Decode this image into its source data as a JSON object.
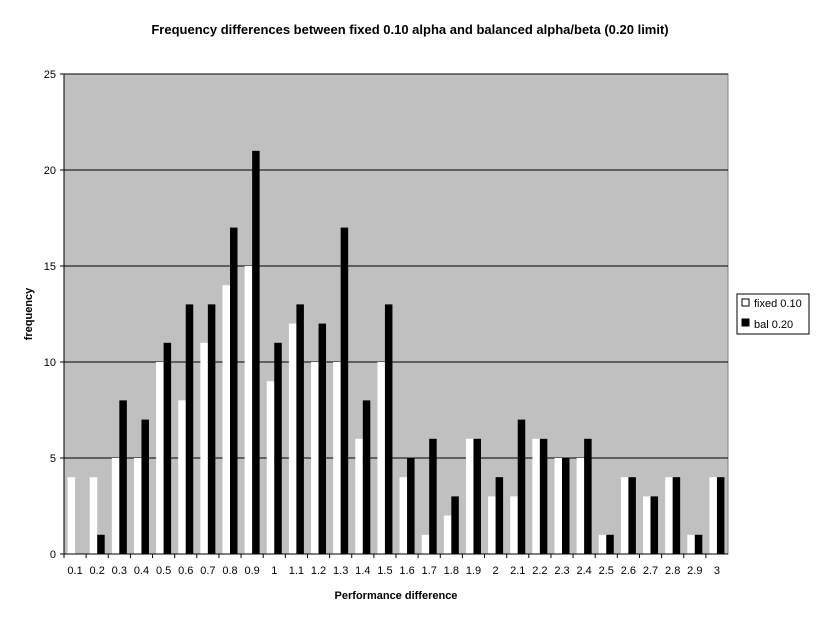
{
  "chart_data": {
    "type": "bar",
    "title": "Frequency differences between fixed 0.10 alpha and balanced alpha/beta (0.20 limit)",
    "xlabel": "Performance difference",
    "ylabel": "frequency",
    "ylim": [
      0,
      25
    ],
    "yticks": [
      "0",
      "5",
      "10",
      "15",
      "20",
      "25"
    ],
    "grid": true,
    "legend_position": "right",
    "categories": [
      "0.1",
      "0.2",
      "0.3",
      "0.4",
      "0.5",
      "0.6",
      "0.7",
      "0.8",
      "0.9",
      "1",
      "1.1",
      "1.2",
      "1.3",
      "1.4",
      "1.5",
      "1.6",
      "1.7",
      "1.8",
      "1.9",
      "2",
      "2.1",
      "2.2",
      "2.3",
      "2.4",
      "2.5",
      "2.6",
      "2.7",
      "2.8",
      "2.9",
      "3"
    ],
    "series": [
      {
        "name": "fixed 0.10",
        "color": "#ffffff",
        "values": [
          4,
          4,
          5,
          5,
          10,
          8,
          11,
          14,
          15,
          9,
          12,
          10,
          10,
          6,
          10,
          4,
          1,
          2,
          6,
          3,
          3,
          6,
          5,
          5,
          1,
          4,
          3,
          4,
          1,
          4
        ]
      },
      {
        "name": "bal 0.20",
        "color": "#000000",
        "values": [
          0,
          1,
          8,
          7,
          11,
          13,
          13,
          17,
          21,
          11,
          13,
          12,
          17,
          8,
          13,
          5,
          6,
          3,
          6,
          4,
          7,
          6,
          5,
          6,
          1,
          4,
          3,
          4,
          1,
          4
        ]
      }
    ],
    "plot_background": "#c0c0c0"
  }
}
